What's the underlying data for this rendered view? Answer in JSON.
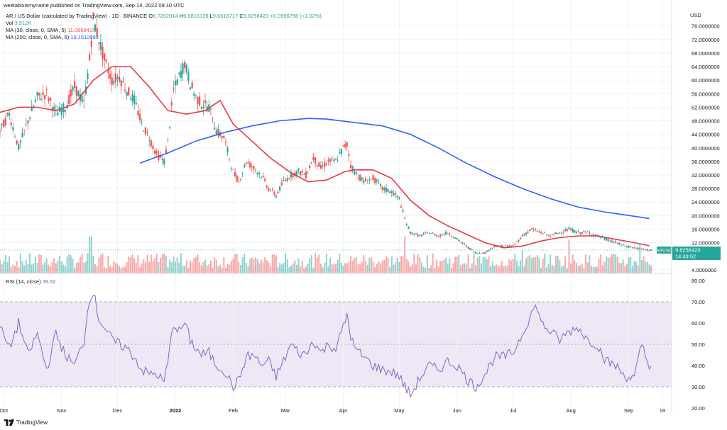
{
  "header": {
    "published": "weetabixismyname published on TradingView.com, Sep 14, 2022 09:10 UTC"
  },
  "legend": {
    "symbol": "AR / US Dollar (calculated by TradingView)",
    "interval": "1D",
    "exchange": "BINANCE",
    "o_label": "O",
    "o_value": "9.7202014",
    "h_label": "H",
    "h_value": "9.9816139",
    "l_label": "L",
    "l_value": "9.6618717",
    "c_label": "C",
    "c_value": "9.8256423",
    "change": "+0.0996798 (+1.02%)",
    "vol_label": "Vol",
    "vol_value": "3.912K",
    "ma30_label": "MA (30, close, 0, SMA, 5)",
    "ma30_value": "11.0868415",
    "ma200_label": "MA (200, close, 0, SMA, 5)",
    "ma200_value": "19.1512083"
  },
  "rsi_legend": {
    "label": "RSI (14, close)",
    "value": "39.62"
  },
  "currency": "USD",
  "price_tag": {
    "symbol": "ARUSD",
    "price": "9.8256423",
    "countdown": "14:49:52"
  },
  "footer": {
    "brand": "TradingView"
  },
  "colors": {
    "up": "#26a69a",
    "down": "#ef5350",
    "ma30": "#e53945",
    "ma200": "#2962ff",
    "rsi": "#7e57c2",
    "rsi_band": "#ede7f6",
    "grid": "#f0f3fa"
  },
  "chart_data": [
    {
      "type": "candlestick",
      "title": "AR / US Dollar (calculated by TradingView)",
      "y_axis_ticks": [
        "76.0000000",
        "72.0000000",
        "68.0000000",
        "64.0000000",
        "60.0000000",
        "56.0000000",
        "52.0000000",
        "48.0000000",
        "44.0000000",
        "40.0000000",
        "36.0000000",
        "32.0000000",
        "28.0000000",
        "24.0000000",
        "20.0000000",
        "16.0000000",
        "12.0000000",
        "4.0000000"
      ],
      "y_tick_values": [
        76,
        72,
        68,
        64,
        60,
        56,
        52,
        48,
        44,
        40,
        36,
        32,
        28,
        24,
        20,
        16,
        12,
        4
      ],
      "ylim": [
        2.5,
        82
      ],
      "x_axis_ticks": [
        "Oct",
        "Nov",
        "Dec",
        "2022",
        "Feb",
        "Mar",
        "Apr",
        "May",
        "Jun",
        "Jul",
        "Aug",
        "Sep",
        "19"
      ],
      "x_tick_days": [
        2,
        33,
        63,
        94,
        125,
        153,
        184,
        214,
        245,
        275,
        306,
        337,
        355
      ],
      "xlim": [
        0,
        360
      ],
      "close_path": [
        [
          0,
          45
        ],
        [
          5,
          50
        ],
        [
          10,
          40
        ],
        [
          15,
          48
        ],
        [
          20,
          55
        ],
        [
          25,
          56
        ],
        [
          30,
          50
        ],
        [
          35,
          52
        ],
        [
          40,
          58
        ],
        [
          45,
          53
        ],
        [
          48,
          66
        ],
        [
          50,
          78
        ],
        [
          53,
          72
        ],
        [
          56,
          66
        ],
        [
          60,
          60
        ],
        [
          64,
          61
        ],
        [
          68,
          57
        ],
        [
          72,
          54
        ],
        [
          76,
          47
        ],
        [
          80,
          43
        ],
        [
          84,
          38
        ],
        [
          88,
          36
        ],
        [
          90,
          42
        ],
        [
          93,
          57
        ],
        [
          96,
          61
        ],
        [
          99,
          65
        ],
        [
          102,
          59
        ],
        [
          105,
          55
        ],
        [
          108,
          53
        ],
        [
          112,
          52
        ],
        [
          116,
          45
        ],
        [
          120,
          43
        ],
        [
          125,
          33
        ],
        [
          128,
          30
        ],
        [
          132,
          36
        ],
        [
          136,
          34
        ],
        [
          140,
          32
        ],
        [
          144,
          28
        ],
        [
          148,
          26
        ],
        [
          152,
          30
        ],
        [
          156,
          32
        ],
        [
          160,
          33
        ],
        [
          164,
          32
        ],
        [
          168,
          37
        ],
        [
          172,
          34
        ],
        [
          176,
          36
        ],
        [
          180,
          36
        ],
        [
          184,
          40
        ],
        [
          186,
          41
        ],
        [
          188,
          35
        ],
        [
          190,
          33
        ],
        [
          195,
          30
        ],
        [
          200,
          31
        ],
        [
          205,
          28
        ],
        [
          210,
          27
        ],
        [
          214,
          25
        ],
        [
          217,
          19
        ],
        [
          220,
          15
        ],
        [
          225,
          14
        ],
        [
          230,
          15
        ],
        [
          235,
          14
        ],
        [
          240,
          15
        ],
        [
          245,
          13
        ],
        [
          250,
          11
        ],
        [
          255,
          9
        ],
        [
          260,
          9
        ],
        [
          265,
          11
        ],
        [
          270,
          11
        ],
        [
          275,
          11
        ],
        [
          280,
          14
        ],
        [
          285,
          16
        ],
        [
          290,
          15
        ],
        [
          295,
          14
        ],
        [
          300,
          15
        ],
        [
          305,
          16
        ],
        [
          310,
          15
        ],
        [
          315,
          15
        ],
        [
          320,
          14
        ],
        [
          325,
          13
        ],
        [
          330,
          12
        ],
        [
          335,
          11
        ],
        [
          340,
          10.5
        ],
        [
          345,
          10
        ],
        [
          349,
          9.8
        ]
      ],
      "ma30": [
        [
          0,
          50.5
        ],
        [
          10,
          52
        ],
        [
          20,
          52
        ],
        [
          30,
          51
        ],
        [
          40,
          53
        ],
        [
          50,
          60
        ],
        [
          60,
          64
        ],
        [
          70,
          64
        ],
        [
          80,
          58
        ],
        [
          90,
          51
        ],
        [
          100,
          50
        ],
        [
          110,
          51
        ],
        [
          118,
          54
        ],
        [
          125,
          47
        ],
        [
          135,
          42
        ],
        [
          145,
          37
        ],
        [
          155,
          33
        ],
        [
          160,
          31.5
        ],
        [
          165,
          30
        ],
        [
          175,
          30.5
        ],
        [
          185,
          33
        ],
        [
          190,
          33.5
        ],
        [
          200,
          33.5
        ],
        [
          210,
          31
        ],
        [
          220,
          24.5
        ],
        [
          230,
          20
        ],
        [
          240,
          17
        ],
        [
          250,
          14.5
        ],
        [
          260,
          12
        ],
        [
          270,
          10.5
        ],
        [
          280,
          11
        ],
        [
          290,
          12.5
        ],
        [
          300,
          13.5
        ],
        [
          310,
          14
        ],
        [
          320,
          14
        ],
        [
          330,
          13
        ],
        [
          340,
          12
        ],
        [
          348,
          11.1
        ]
      ],
      "ma200": [
        [
          75,
          35.5
        ],
        [
          90,
          38.5
        ],
        [
          105,
          42
        ],
        [
          120,
          44.5
        ],
        [
          135,
          46.5
        ],
        [
          150,
          48
        ],
        [
          165,
          48.7
        ],
        [
          175,
          48.5
        ],
        [
          190,
          47.5
        ],
        [
          205,
          46.5
        ],
        [
          220,
          44
        ],
        [
          235,
          40
        ],
        [
          250,
          35.5
        ],
        [
          265,
          31.5
        ],
        [
          280,
          28
        ],
        [
          295,
          25
        ],
        [
          310,
          22.5
        ],
        [
          325,
          21
        ],
        [
          340,
          19.8
        ],
        [
          348,
          19.15
        ]
      ]
    },
    {
      "type": "bar",
      "title": "Vol",
      "bars_count": 350,
      "note": "relative daily volume heights (0-1)",
      "spikes": [
        [
          48,
          0.92
        ],
        [
          48.5,
          0.55
        ],
        [
          55,
          0.3
        ],
        [
          217,
          0.55
        ],
        [
          280,
          0.35
        ],
        [
          305,
          0.5
        ],
        [
          343,
          0.45
        ]
      ]
    },
    {
      "type": "line",
      "title": "RSI (14, close)",
      "y_axis_ticks": [
        "80.00",
        "70.00",
        "60.00",
        "50.00",
        "40.00",
        "30.00",
        "20.00"
      ],
      "y_tick_values": [
        80,
        70,
        60,
        50,
        40,
        30,
        20
      ],
      "ylim": [
        18,
        82
      ],
      "bands": [
        30,
        70
      ],
      "rsi_path": [
        [
          0,
          58
        ],
        [
          5,
          48
        ],
        [
          10,
          60
        ],
        [
          15,
          45
        ],
        [
          20,
          55
        ],
        [
          25,
          38
        ],
        [
          30,
          55
        ],
        [
          35,
          45
        ],
        [
          40,
          40
        ],
        [
          45,
          52
        ],
        [
          48,
          72
        ],
        [
          50,
          75
        ],
        [
          53,
          62
        ],
        [
          56,
          58
        ],
        [
          60,
          52
        ],
        [
          64,
          50
        ],
        [
          68,
          48
        ],
        [
          72,
          44
        ],
        [
          76,
          38
        ],
        [
          80,
          36
        ],
        [
          84,
          36
        ],
        [
          88,
          32
        ],
        [
          90,
          42
        ],
        [
          93,
          60
        ],
        [
          96,
          56
        ],
        [
          99,
          60
        ],
        [
          102,
          52
        ],
        [
          105,
          48
        ],
        [
          108,
          45
        ],
        [
          112,
          46
        ],
        [
          116,
          40
        ],
        [
          120,
          38
        ],
        [
          125,
          30
        ],
        [
          128,
          33
        ],
        [
          132,
          44
        ],
        [
          136,
          45
        ],
        [
          140,
          40
        ],
        [
          144,
          42
        ],
        [
          148,
          35
        ],
        [
          152,
          42
        ],
        [
          156,
          50
        ],
        [
          160,
          46
        ],
        [
          164,
          45
        ],
        [
          168,
          52
        ],
        [
          172,
          46
        ],
        [
          176,
          50
        ],
        [
          180,
          48
        ],
        [
          184,
          58
        ],
        [
          186,
          64
        ],
        [
          188,
          54
        ],
        [
          190,
          48
        ],
        [
          195,
          44
        ],
        [
          200,
          40
        ],
        [
          205,
          38
        ],
        [
          210,
          37
        ],
        [
          214,
          35
        ],
        [
          217,
          30
        ],
        [
          220,
          26
        ],
        [
          225,
          34
        ],
        [
          230,
          40
        ],
        [
          235,
          38
        ],
        [
          240,
          42
        ],
        [
          245,
          40
        ],
        [
          250,
          34
        ],
        [
          255,
          30
        ],
        [
          260,
          36
        ],
        [
          265,
          44
        ],
        [
          270,
          44
        ],
        [
          275,
          46
        ],
        [
          280,
          55
        ],
        [
          285,
          65
        ],
        [
          288,
          68
        ],
        [
          290,
          60
        ],
        [
          295,
          56
        ],
        [
          300,
          52
        ],
        [
          305,
          56
        ],
        [
          310,
          58
        ],
        [
          315,
          52
        ],
        [
          320,
          50
        ],
        [
          325,
          42
        ],
        [
          330,
          40
        ],
        [
          335,
          35
        ],
        [
          340,
          34
        ],
        [
          344,
          50
        ],
        [
          347,
          42
        ],
        [
          349,
          39.6
        ]
      ]
    }
  ]
}
